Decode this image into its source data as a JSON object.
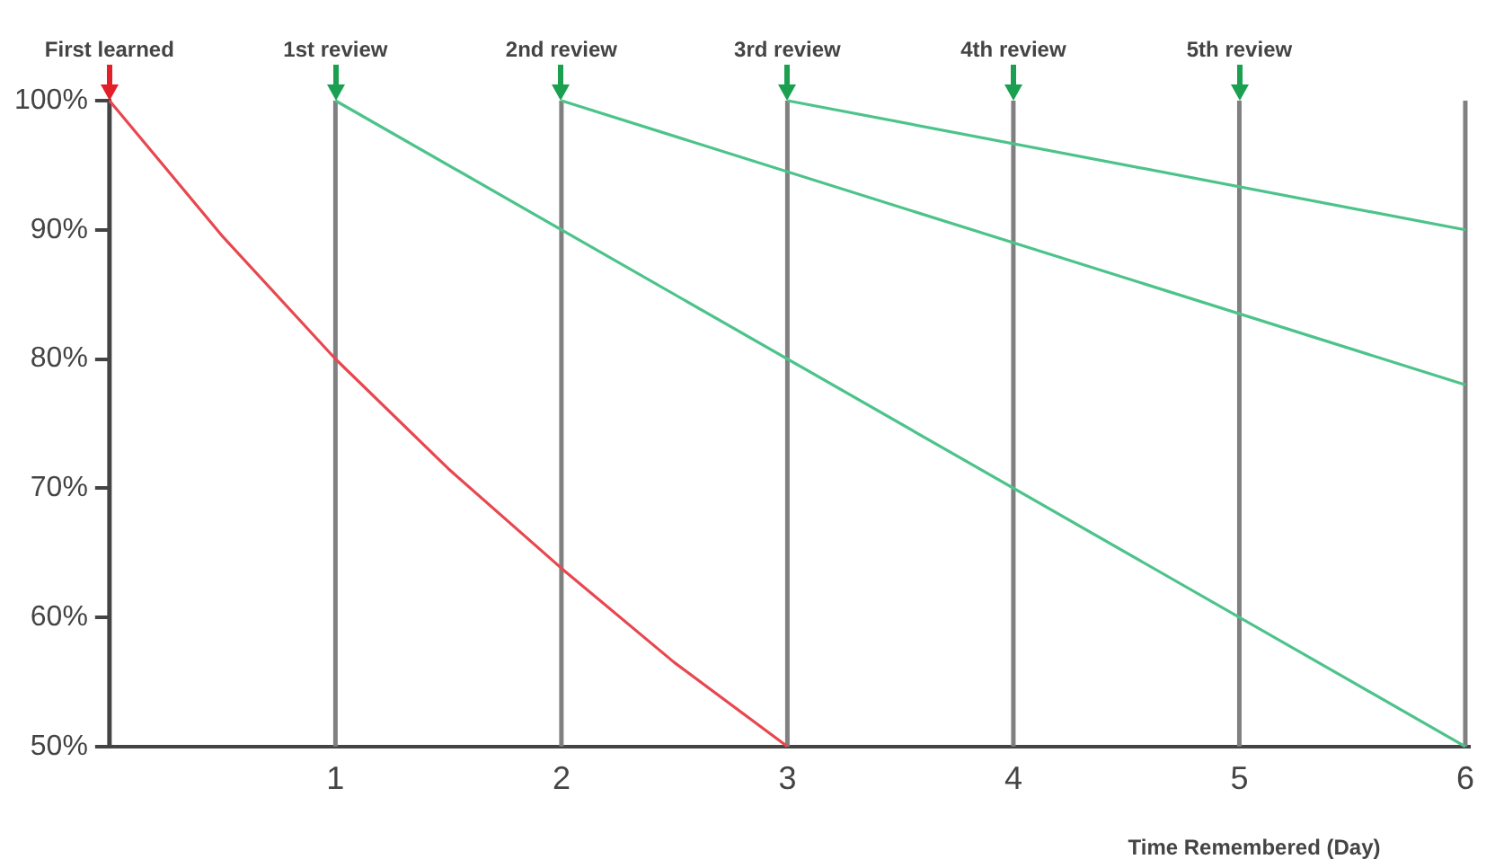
{
  "chart_data": {
    "type": "line",
    "xlabel": "Time Remembered (Day)",
    "xlim": [
      0,
      6.02
    ],
    "xticks": [
      1,
      2,
      3,
      4,
      5,
      6
    ],
    "ylim": [
      50,
      100
    ],
    "yticks": [
      {
        "value": 50,
        "label": "50%"
      },
      {
        "value": 60,
        "label": "60%"
      },
      {
        "value": 70,
        "label": "70%"
      },
      {
        "value": 80,
        "label": "80%"
      },
      {
        "value": 90,
        "label": "90%"
      },
      {
        "value": 100,
        "label": "100%"
      }
    ],
    "grid": false,
    "legend": false,
    "marker": "none",
    "line_style": "solid",
    "series": [
      {
        "color": "#e8474f",
        "x": [
          0,
          0.5,
          1,
          1.5,
          2,
          2.5,
          3
        ],
        "values": [
          100,
          89.5,
          80,
          71.5,
          63.8,
          56.5,
          50
        ]
      },
      {
        "color": "#4cc38a",
        "x": [
          1,
          6
        ],
        "values": [
          100,
          50
        ]
      },
      {
        "color": "#4cc38a",
        "x": [
          2,
          6
        ],
        "values": [
          100,
          78
        ]
      },
      {
        "color": "#4cc38a",
        "x": [
          3,
          6
        ],
        "values": [
          100,
          90
        ]
      }
    ],
    "ref_lines": [
      {
        "axis": "x",
        "value": 0,
        "label": "First learned",
        "color": "#444444"
      },
      {
        "axis": "x",
        "value": 1,
        "label": "1st review",
        "color": "#808080"
      },
      {
        "axis": "x",
        "value": 2,
        "label": "2nd review",
        "color": "#808080"
      },
      {
        "axis": "x",
        "value": 3,
        "label": "3rd review",
        "color": "#808080"
      },
      {
        "axis": "x",
        "value": 4,
        "label": "4th review",
        "color": "#808080"
      },
      {
        "axis": "x",
        "value": 5,
        "label": "5th review",
        "color": "#808080"
      },
      {
        "axis": "x",
        "value": 6,
        "label": null,
        "color": "#808080"
      }
    ]
  }
}
